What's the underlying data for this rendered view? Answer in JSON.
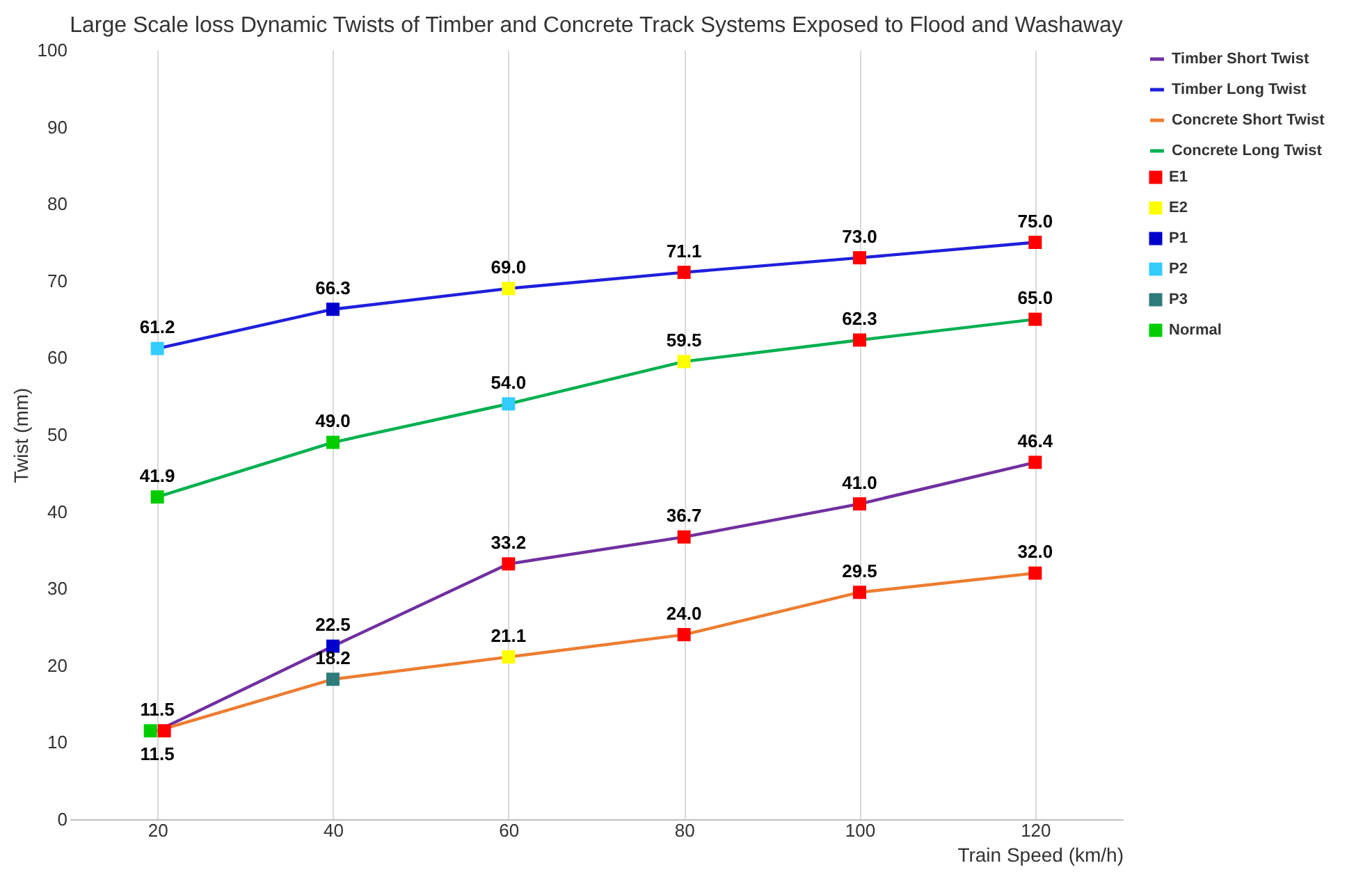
{
  "chart_data": {
    "type": "line",
    "title": "Large Scale loss Dynamic Twists of Timber and Concrete Track Systems Exposed to Flood and Washaway",
    "xlabel": "Train Speed (km/h)",
    "ylabel": "Twist (mm)",
    "categories": [
      "20",
      "40",
      "60",
      "80",
      "100",
      "120"
    ],
    "ylim": [
      0,
      100
    ],
    "yticks": [
      0,
      10,
      20,
      30,
      40,
      50,
      60,
      70,
      80,
      90,
      100
    ],
    "grid": "x",
    "legend": "right",
    "series": [
      {
        "name": "Timber Short Twist",
        "color": "#7030a0",
        "values": [
          11.5,
          22.5,
          33.2,
          36.7,
          41.0,
          46.4
        ],
        "value_labels": [
          "11.5",
          "22.5",
          "33.2",
          "36.7",
          "41.0",
          "46.4"
        ]
      },
      {
        "name": "Timber Long Twist",
        "color": "#1f1fdd",
        "values": [
          61.2,
          66.3,
          69.0,
          71.1,
          73.0,
          75.0
        ],
        "value_labels": [
          "61.2",
          "66.3",
          "69.0",
          "71.1",
          "73.0",
          "75.0"
        ]
      },
      {
        "name": "Concrete Short Twist",
        "color": "#ed7d31",
        "values": [
          11.5,
          18.2,
          21.1,
          24.0,
          29.5,
          32.0
        ],
        "value_labels": [
          "11.5",
          "18.2",
          "21.1",
          "24.0",
          "29.5",
          "32.0"
        ]
      },
      {
        "name": "Concrete Long Twist",
        "color": "#00b050",
        "values": [
          41.9,
          49.0,
          54.0,
          59.5,
          62.3,
          65.0
        ],
        "value_labels": [
          "41.9",
          "49.0",
          "54.0",
          "59.5",
          "62.3",
          "65.0"
        ]
      },
      {
        "name": "E1",
        "type": "scatter",
        "marker": "square",
        "color": "#ff0000",
        "x": [
          "60",
          "80",
          "100",
          "120",
          "80",
          "100",
          "120",
          "100",
          "120",
          "20",
          "80",
          "100",
          "120"
        ],
        "values": [
          33.2,
          36.7,
          41.0,
          46.4,
          71.1,
          73.0,
          75.0,
          62.3,
          65.0,
          11.5,
          24.0,
          29.5,
          32.0
        ]
      },
      {
        "name": "E2",
        "type": "scatter",
        "marker": "square",
        "color": "#ffff00",
        "x": [
          "60",
          "80",
          "60"
        ],
        "values": [
          69.0,
          59.5,
          21.1
        ]
      },
      {
        "name": "P1",
        "type": "scatter",
        "marker": "square",
        "color": "#0000cc",
        "x": [
          "40",
          "40"
        ],
        "values": [
          22.5,
          66.3
        ]
      },
      {
        "name": "P2",
        "type": "scatter",
        "marker": "square",
        "color": "#33ccff",
        "x": [
          "20",
          "60"
        ],
        "values": [
          61.2,
          54.0
        ]
      },
      {
        "name": "P3",
        "type": "scatter",
        "marker": "square",
        "color": "#2e7b7b",
        "x": [
          "40"
        ],
        "values": [
          18.2
        ]
      },
      {
        "name": "Normal",
        "type": "scatter",
        "marker": "square",
        "color": "#00cc00",
        "x": [
          "20",
          "20",
          "40"
        ],
        "values": [
          11.5,
          41.9,
          49.0
        ]
      }
    ]
  }
}
